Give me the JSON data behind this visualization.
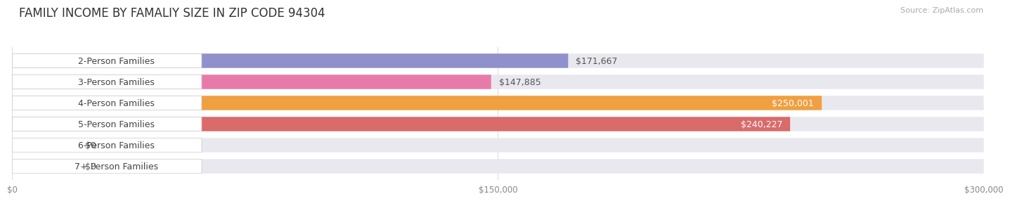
{
  "title": "FAMILY INCOME BY FAMALIY SIZE IN ZIP CODE 94304",
  "source": "Source: ZipAtlas.com",
  "categories": [
    "2-Person Families",
    "3-Person Families",
    "4-Person Families",
    "5-Person Families",
    "6-Person Families",
    "7+ Person Families"
  ],
  "values": [
    171667,
    147885,
    250001,
    240227,
    0,
    0
  ],
  "bar_colors": [
    "#8f90cc",
    "#e87aaa",
    "#f0a040",
    "#d96b6b",
    "#a8b8d8",
    "#c0a8cc"
  ],
  "label_colors": [
    "#555555",
    "#555555",
    "#ffffff",
    "#ffffff",
    "#555555",
    "#555555"
  ],
  "value_labels": [
    "$171,667",
    "$147,885",
    "$250,001",
    "$240,227",
    "$0",
    "$0"
  ],
  "value_inside": [
    false,
    false,
    true,
    true,
    false,
    false
  ],
  "x_max": 300000,
  "x_tick_labels": [
    "$0",
    "$150,000",
    "$300,000"
  ],
  "x_tick_vals": [
    0,
    150000,
    300000
  ],
  "bg_color": "#f5f5f5",
  "bar_bg_color": "#e8e8ee",
  "title_fontsize": 12,
  "source_fontsize": 8,
  "label_fontsize": 9,
  "value_fontsize": 9,
  "bar_height": 0.68,
  "bar_gap": 0.15
}
